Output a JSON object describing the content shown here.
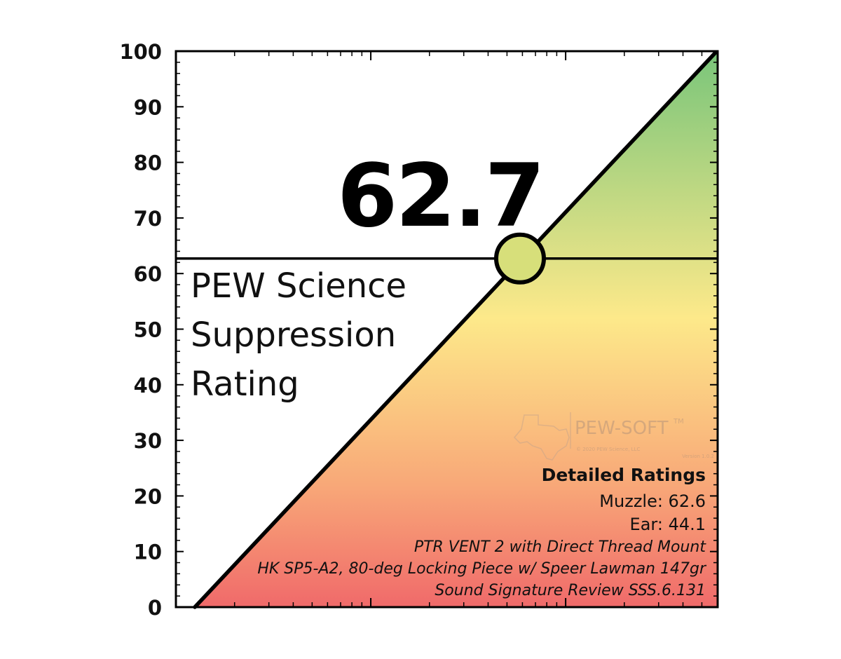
{
  "chart_data": {
    "type": "line",
    "ylim": [
      0,
      100
    ],
    "yticks": [
      0,
      10,
      20,
      30,
      40,
      50,
      60,
      70,
      80,
      90,
      100
    ],
    "xscale": "log",
    "grid": false,
    "series": [
      {
        "x": [
          0,
          1
        ],
        "y": [
          0,
          100
        ]
      }
    ],
    "marker": {
      "y": 62.7
    },
    "rating_value": "62.7",
    "rating_title_lines": [
      "PEW Science",
      "Suppression",
      "Rating"
    ],
    "detailed_ratings": {
      "heading": "Detailed Ratings",
      "muzzle": "Muzzle: 62.6",
      "ear": "Ear: 44.1",
      "device": "PTR VENT 2 with Direct Thread Mount",
      "host": "HK SP5-A2, 80-deg Locking Piece w/ Speer Lawman 147gr",
      "review": "Sound Signature Review SSS.6.131"
    },
    "gradient_colors": {
      "bottom": "#f06a6a",
      "lower": "#f8a878",
      "middle": "#fde98a",
      "top": "#79c57a"
    },
    "marker_color": "#d7df7a"
  },
  "watermark": {
    "brand": "PEW-SOFT",
    "trademark": "TM",
    "copyright": "© 2020 PEW Science, LLC",
    "version": "Version 1.0.2",
    "icon": "texas-pistol-icon"
  }
}
